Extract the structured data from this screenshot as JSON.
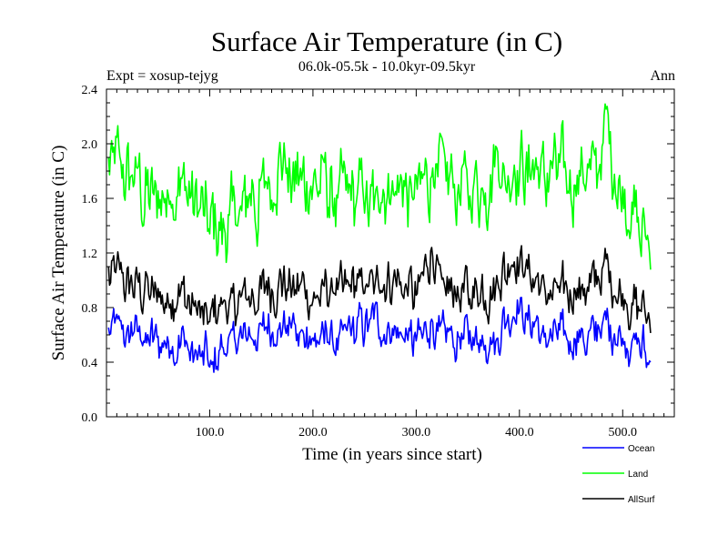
{
  "header": {
    "title": "Surface Air Temperature (in C)",
    "subtitle": "06.0k-05.5k - 10.0kyr-09.5kyr",
    "expt": "Expt = xosup-tejyg",
    "period": "Ann"
  },
  "chart_data": {
    "type": "line",
    "title": "Surface Air Temperature (in C)",
    "subtitle": "06.0k-05.5k - 10.0kyr-09.5kyr",
    "xlabel": "Time (in years since start)",
    "ylabel": "Surface Air Temperature (in C)",
    "xlim": [
      0,
      550
    ],
    "ylim": [
      0.0,
      2.4
    ],
    "xticks": [
      100,
      200,
      300,
      400,
      500
    ],
    "xtick_labels": [
      "100.0",
      "200.0",
      "300.0",
      "400.0",
      "500.0"
    ],
    "yticks": [
      0.0,
      0.4,
      0.8,
      1.2,
      1.6,
      2.0,
      2.4
    ],
    "ytick_labels": [
      "0.0",
      "0.4",
      "0.8",
      "1.2",
      "1.6",
      "2.0",
      "2.4"
    ],
    "grid": false,
    "legend_position": "bottom-right, below plot",
    "x": [
      0,
      25,
      50,
      75,
      100,
      125,
      150,
      175,
      200,
      225,
      250,
      275,
      300,
      315,
      325,
      350,
      375,
      395,
      425,
      450,
      475,
      485,
      500,
      525
    ],
    "series": [
      {
        "name": "Ocean",
        "color": "#0000ff",
        "values": [
          0.68,
          0.6,
          0.55,
          0.52,
          0.4,
          0.58,
          0.62,
          0.66,
          0.6,
          0.58,
          0.65,
          0.67,
          0.55,
          0.68,
          0.55,
          0.56,
          0.58,
          0.78,
          0.6,
          0.58,
          0.62,
          0.7,
          0.6,
          0.47
        ]
      },
      {
        "name": "Land",
        "color": "#00ff00",
        "values": [
          1.9,
          1.7,
          1.6,
          1.65,
          1.35,
          1.45,
          1.65,
          1.8,
          1.75,
          1.65,
          1.6,
          1.75,
          1.6,
          1.85,
          1.7,
          1.72,
          1.78,
          1.8,
          1.8,
          1.75,
          1.8,
          2.1,
          1.6,
          1.3
        ]
      },
      {
        "name": "AllSurf",
        "color": "#000000",
        "values": [
          1.05,
          0.95,
          0.88,
          0.9,
          0.72,
          0.82,
          0.92,
          0.98,
          0.92,
          0.9,
          0.95,
          1.0,
          0.88,
          1.25,
          0.9,
          0.92,
          0.95,
          1.15,
          0.95,
          0.92,
          0.96,
          1.05,
          0.92,
          0.72
        ]
      }
    ]
  }
}
